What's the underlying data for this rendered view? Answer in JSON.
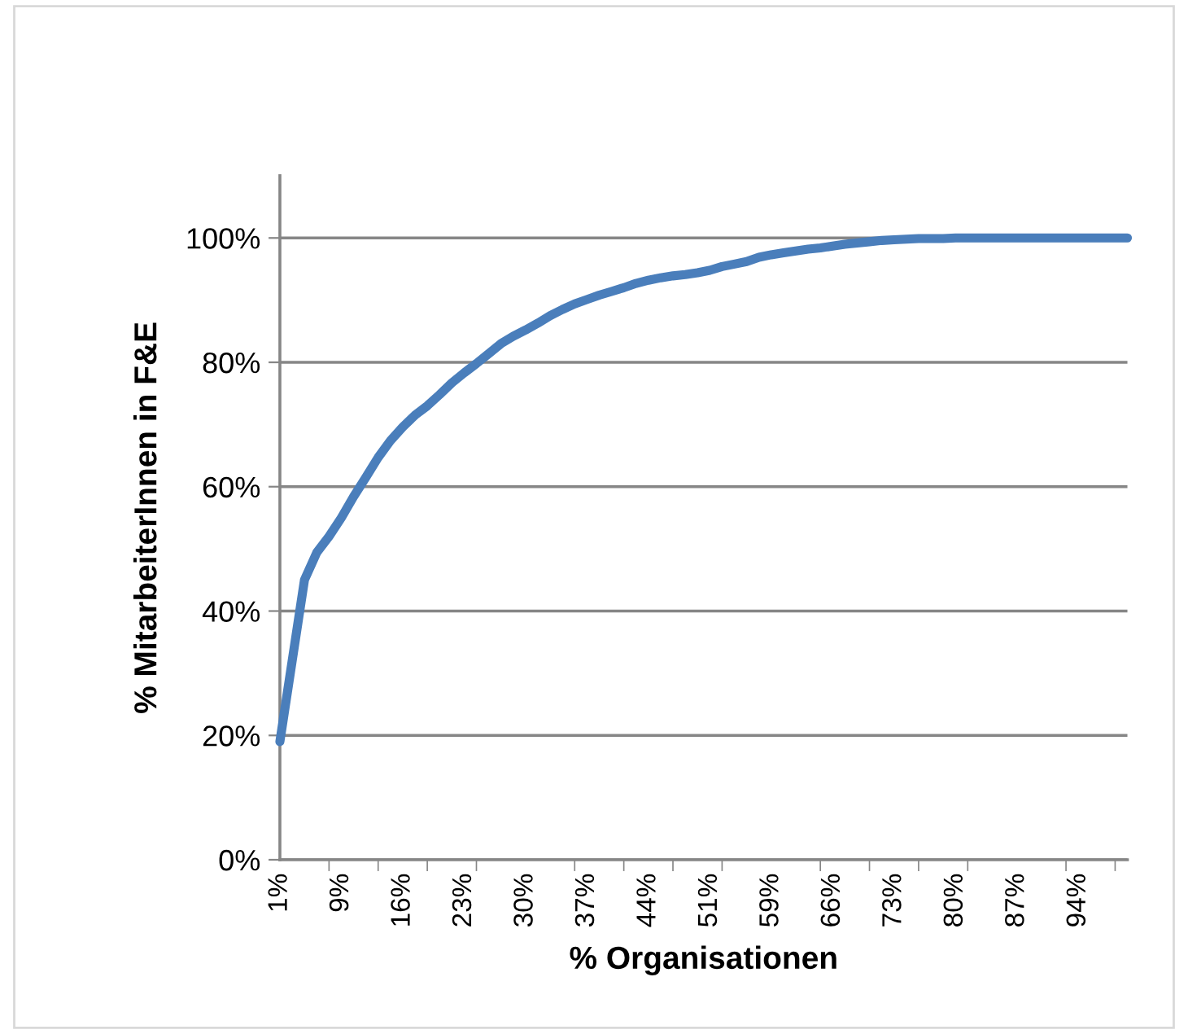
{
  "chart_data": {
    "type": "line",
    "xlabel": "% Organisationen",
    "ylabel": "% MitarbeiterInnen in F&E",
    "categories": [
      "1%",
      null,
      null,
      null,
      null,
      "9%",
      null,
      null,
      null,
      null,
      "16%",
      null,
      null,
      null,
      null,
      "23%",
      null,
      null,
      null,
      null,
      "30%",
      null,
      null,
      null,
      null,
      "37%",
      null,
      null,
      null,
      null,
      "44%",
      null,
      null,
      null,
      null,
      "51%",
      null,
      null,
      null,
      null,
      "59%",
      null,
      null,
      null,
      null,
      "66%",
      null,
      null,
      null,
      null,
      "73%",
      null,
      null,
      null,
      null,
      "80%",
      null,
      null,
      null,
      null,
      "87%",
      null,
      null,
      null,
      null,
      "94%",
      null,
      null,
      null,
      null
    ],
    "series": [
      {
        "color": "#4a7ebb",
        "values": [
          19,
          32,
          45,
          49.4,
          52,
          55,
          58.4,
          61.5,
          64.7,
          67.4,
          69.6,
          71.5,
          73,
          74.8,
          76.7,
          78.3,
          79.8,
          81.4,
          83,
          84.2,
          85.2,
          86.3,
          87.5,
          88.5,
          89.4,
          90.1,
          90.8,
          91.4,
          92,
          92.7,
          93.2,
          93.6,
          93.9,
          94.1,
          94.4,
          94.8,
          95.4,
          95.8,
          96.2,
          96.9,
          97.3,
          97.6,
          97.9,
          98.2,
          98.4,
          98.7,
          99,
          99.2,
          99.4,
          99.6,
          99.7,
          99.8,
          99.9,
          99.9,
          99.9,
          100,
          100,
          100,
          100,
          100,
          100,
          100,
          100,
          100,
          100,
          100,
          100,
          100,
          100,
          100
        ]
      }
    ],
    "ylim": [
      0,
      110
    ],
    "yticks": [
      {
        "value": 0,
        "label": "0%"
      },
      {
        "value": 20,
        "label": "20%"
      },
      {
        "value": 40,
        "label": "40%"
      },
      {
        "value": 60,
        "label": "60%"
      },
      {
        "value": 80,
        "label": "80%"
      },
      {
        "value": 100,
        "label": "100%"
      }
    ],
    "grid": "y",
    "marker": "none",
    "line_style": "solid"
  }
}
